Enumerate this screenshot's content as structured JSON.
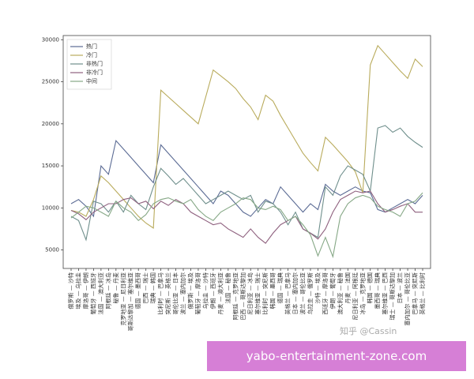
{
  "chart_data": {
    "type": "line",
    "categories": [
      "俄罗斯 — 沙特",
      "埃及 — 乌拉圭",
      "摩洛哥 — 伊朗",
      "葡萄牙 — 西班牙",
      "法国 — 澳大利亚",
      "阿根廷 — 冰岛",
      "秘鲁 — 丹麦",
      "克罗地亚 — 尼日利亚",
      "哥斯达黎加 — 塞尔维亚",
      "德国 — 墨西哥",
      "巴西 — 瑞士",
      "瑞典 — 韩国",
      "比利时 — 巴拿马",
      "突尼斯 — 英格兰",
      "哥伦比亚 — 日本",
      "波兰 — 塞内加尔",
      "俄罗斯 — 埃及",
      "葡萄牙 — 摩洛哥",
      "乌拉圭 — 沙特",
      "伊朗 — 西班牙",
      "丹麦 — 澳大利亚",
      "法国 — 秘鲁",
      "阿根廷 — 克罗地亚",
      "巴西 — 哥斯达黎加",
      "尼日利亚 — 冰岛",
      "塞尔维亚 — 瑞士",
      "比利时 — 突尼斯",
      "韩国 — 墨西哥",
      "德国 — 瑞典",
      "英格兰 — 巴拿马",
      "日本 — 塞内加尔",
      "波兰 — 哥伦比亚",
      "乌拉圭 — 俄罗斯",
      "沙特 — 埃及",
      "西班牙 — 摩洛哥",
      "伊朗 — 葡萄牙",
      "澳大利亚 — 秘鲁",
      "丹麦 — 法国",
      "尼日利亚 — 阿根廷",
      "冰岛 — 克罗地亚",
      "韩国 — 德国",
      "墨西哥 — 瑞典",
      "塞尔维亚 — 巴西",
      "瑞士 — 哥斯达黎加",
      "日本 — 波兰",
      "塞内加尔 — 哥伦比亚",
      "巴拿马 — 突尼斯",
      "英格兰 — 比利时"
    ],
    "series": [
      {
        "name": "热门",
        "color": "#5b6b94",
        "values": [
          10500,
          11000,
          10200,
          9000,
          15000,
          14000,
          18000,
          17000,
          16000,
          15000,
          14000,
          13000,
          17500,
          16500,
          15500,
          14500,
          13500,
          12500,
          11500,
          10500,
          12000,
          11500,
          10500,
          9500,
          9000,
          10000,
          11000,
          10500,
          12500,
          11500,
          10500,
          9500,
          10500,
          9800,
          12800,
          12000,
          11500,
          12000,
          12500,
          12000,
          11800,
          9800,
          9500,
          10000,
          10500,
          11000,
          10500,
          11500
        ]
      },
      {
        "name": "冷门",
        "color": "#b9ab5c",
        "values": [
          9700,
          9500,
          9000,
          11000,
          13800,
          13000,
          12000,
          11000,
          10000,
          9000,
          8200,
          7600,
          24000,
          23200,
          22400,
          21600,
          20800,
          20000,
          23200,
          26400,
          25700,
          25000,
          24200,
          23000,
          22000,
          20500,
          23400,
          22700,
          21000,
          19500,
          18000,
          16500,
          15400,
          14400,
          18400,
          17500,
          16500,
          15500,
          14300,
          11800,
          27000,
          29300,
          28300,
          27300,
          26300,
          25400,
          27700,
          26800
        ]
      },
      {
        "name": "非热门",
        "color": "#6f8f8c",
        "values": [
          9000,
          8500,
          6200,
          10800,
          10500,
          9500,
          10800,
          9500,
          11500,
          10500,
          9800,
          12500,
          14700,
          13800,
          12800,
          13500,
          12500,
          11500,
          10500,
          11000,
          11500,
          12000,
          11500,
          11000,
          11500,
          9500,
          10800,
          10500,
          9500,
          8000,
          9500,
          7500,
          7000,
          6500,
          12500,
          11500,
          13800,
          15000,
          14500,
          14000,
          12000,
          19500,
          19800,
          19000,
          19500,
          18500,
          17800,
          17200
        ]
      },
      {
        "name": "非冷门",
        "color": "#8e607e",
        "values": [
          9700,
          9300,
          8600,
          9500,
          10000,
          10500,
          10500,
          11000,
          11200,
          10500,
          10800,
          9900,
          10800,
          10300,
          11000,
          10500,
          9500,
          9000,
          8500,
          8000,
          8200,
          7500,
          7000,
          6500,
          7500,
          6500,
          5800,
          7000,
          8000,
          8500,
          9000,
          7500,
          7000,
          6300,
          7500,
          9500,
          11000,
          11500,
          12000,
          11800,
          12000,
          10500,
          9500,
          9800,
          10200,
          10500,
          9500,
          9500
        ]
      },
      {
        "name": "中间",
        "color": "#86a886",
        "values": [
          8800,
          9500,
          10200,
          10000,
          9500,
          9000,
          10800,
          10000,
          9500,
          8500,
          9200,
          10500,
          11000,
          11200,
          10800,
          10500,
          11000,
          9800,
          9000,
          8500,
          9500,
          10000,
          10500,
          11200,
          11000,
          10000,
          9800,
          10200,
          9800,
          8500,
          9000,
          8000,
          6800,
          4300,
          6500,
          4200,
          9000,
          10500,
          11200,
          11500,
          11200,
          10200,
          9800,
          9500,
          9000,
          10500,
          10800,
          11800
        ]
      }
    ],
    "ylim": [
      2800,
      30500
    ],
    "yticks": [
      5000,
      10000,
      15000,
      20000,
      25000,
      30000
    ],
    "grid": false,
    "legend": "upper left"
  },
  "watermark": "知乎 @Cassin",
  "banner": "yabo-entertainment-zone.com"
}
